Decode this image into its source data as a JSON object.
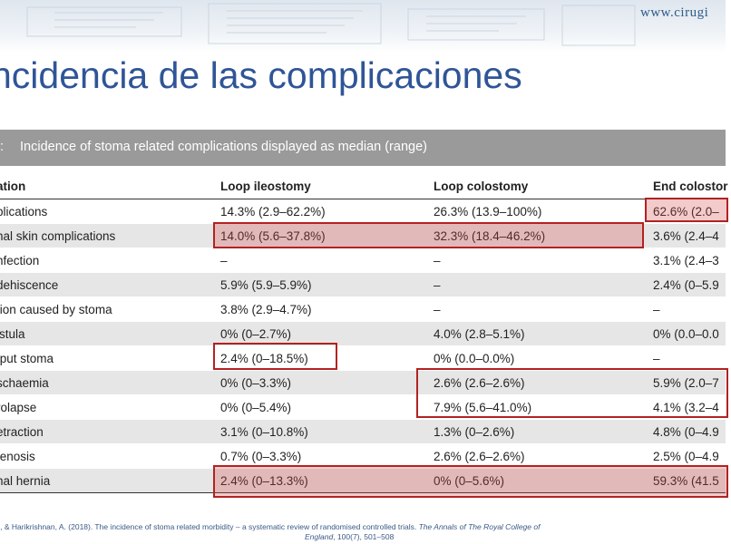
{
  "header": {
    "site_url": "www.cirugi"
  },
  "slide": {
    "title": "ncidencia de las complicaciones"
  },
  "table": {
    "caption_number": ":",
    "caption": "Incidence of stoma related complications displayed as median (range)",
    "columns": [
      "ation",
      "Loop ileostomy",
      "Loop colostomy",
      "End colostor"
    ],
    "rows": [
      [
        "plications",
        "14.3% (2.9–62.2%)",
        "26.3% (13.9–100%)",
        "62.6% (2.0–"
      ],
      [
        "nal skin complications",
        "14.0% (5.6–37.8%)",
        "32.3% (18.4–46.2%)",
        "3.6% (2.4–4"
      ],
      [
        "nfection",
        "–",
        "–",
        "3.1% (2.4–3"
      ],
      [
        "dehiscence",
        "5.9% (5.9–5.9%)",
        "–",
        "2.4% (0–5.9"
      ],
      [
        "tion caused by stoma",
        "3.8% (2.9–4.7%)",
        "–",
        "–"
      ],
      [
        "istula",
        "0% (0–2.7%)",
        "4.0% (2.8–5.1%)",
        "0% (0.0–0.0"
      ],
      [
        "tput stoma",
        "2.4% (0–18.5%)",
        "0% (0.0–0.0%)",
        "–"
      ],
      [
        "schaemia",
        "0% (0–3.3%)",
        "2.6% (2.6–2.6%)",
        "5.9% (2.0–7"
      ],
      [
        "rolapse",
        "0% (0–5.4%)",
        "7.9% (5.6–41.0%)",
        "4.1% (3.2–4"
      ],
      [
        "etraction",
        "3.1% (0–10.8%)",
        "1.3% (0–2.6%)",
        "4.8% (0–4.9"
      ],
      [
        "tenosis",
        "0.7% (0–3.3%)",
        "2.6% (2.6–2.6%)",
        "2.5% (0–4.9"
      ],
      [
        "nal hernia",
        "2.4% (0–13.3%)",
        "0% (0–5.6%)",
        "59.3% (41.5"
      ]
    ]
  },
  "reference": {
    "line1_prefix": ", M., & Harikrishnan, A. (2018). The incidence of stoma related morbidity – a systematic review of randomised controlled trials. ",
    "line1_journal": "The Annals of The Royal College of",
    "line2_journal": "England",
    "line2_rest": ", 100(7), 501–508"
  },
  "colors": {
    "title": "#2f5597",
    "caption_bar": "#9a9a9a",
    "highlight": "#b22222",
    "row_alt": "#e6e6e6"
  }
}
